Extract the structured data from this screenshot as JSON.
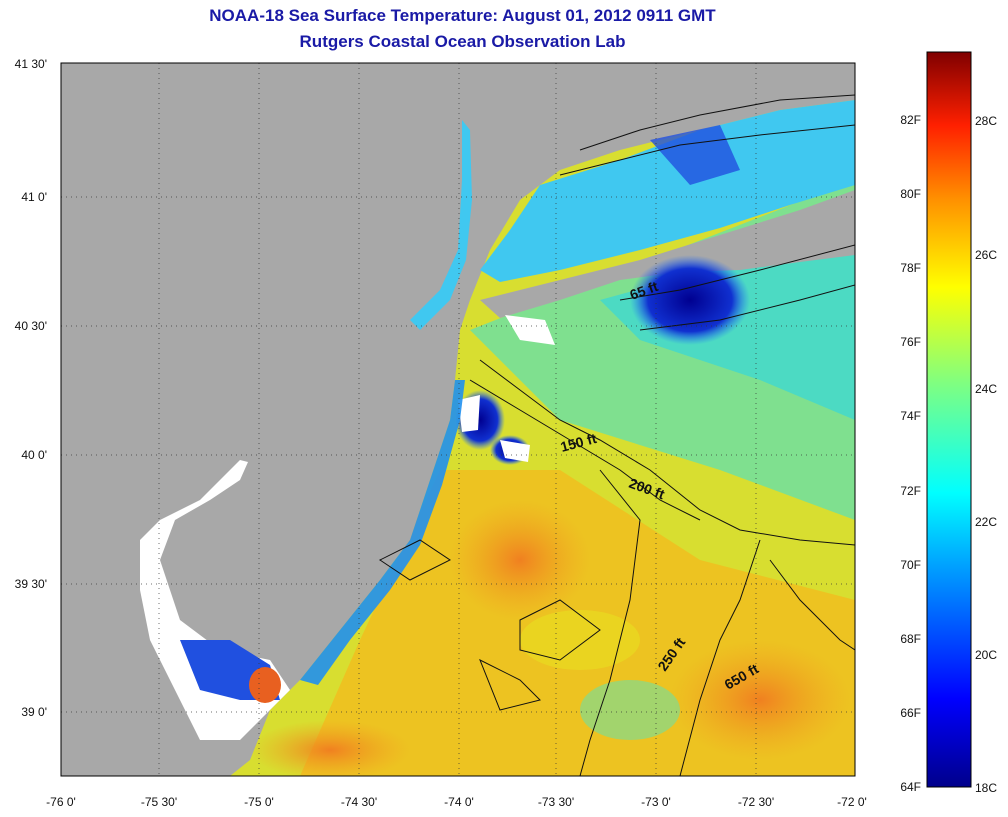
{
  "title": "NOAA-18 Sea Surface Temperature:  August 01, 2012 0911 GMT",
  "subtitle": "Rutgers Coastal Ocean Observation Lab",
  "map": {
    "lon_ticks": [
      "-76 0'",
      "-75 30'",
      "-75 0'",
      "-74 30'",
      "-74 0'",
      "-73 30'",
      "-73 0'",
      "-72 30'",
      "-72 0'"
    ],
    "lat_ticks": [
      "41 30'",
      "41 0'",
      "40 30'",
      "40 0'",
      "39 30'",
      "39 0'"
    ],
    "depth_labels": [
      "65 ft",
      "150 ft",
      "200 ft",
      "250 ft",
      "650 ft"
    ],
    "colors": {
      "land": "#a8a8a8",
      "cloud": "#ffffff",
      "ocean_warm": "#f0d020",
      "ocean_cool": "#30d0e0"
    }
  },
  "colorbar": {
    "fahrenheit": [
      "82F",
      "80F",
      "78F",
      "76F",
      "74F",
      "72F",
      "70F",
      "68F",
      "66F",
      "64F"
    ],
    "celsius": [
      "28C",
      "26C",
      "24C",
      "22C",
      "20C",
      "18C"
    ]
  }
}
